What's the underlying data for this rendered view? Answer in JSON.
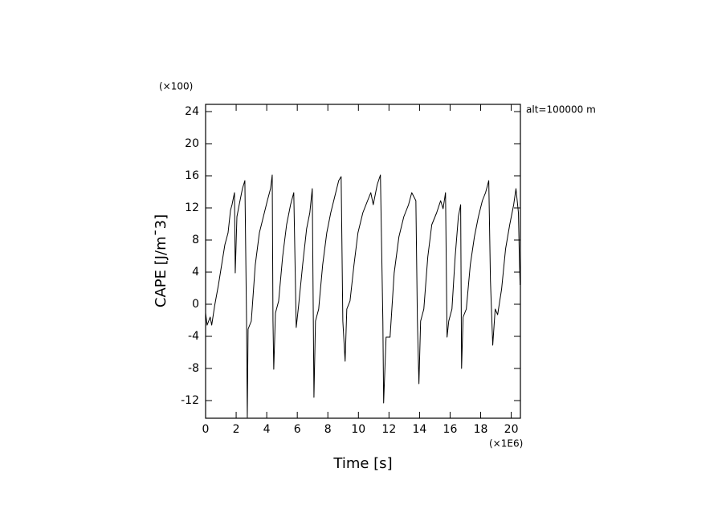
{
  "chart_data": {
    "type": "line",
    "xlabel": "Time [s]",
    "ylabel": "CAPE [J/m¯3]",
    "x_scale_label": "(×1E6)",
    "y_scale_label": "(×100)",
    "annotation": "alt=100000 m",
    "xlim": [
      0,
      20.6
    ],
    "ylim": [
      -14.2,
      24.9
    ],
    "xticks": [
      0,
      2,
      4,
      6,
      8,
      10,
      12,
      14,
      16,
      18,
      20
    ],
    "yticks": [
      -12,
      -8,
      -4,
      0,
      4,
      8,
      12,
      16,
      20,
      24
    ],
    "series": [
      {
        "color": "#000000",
        "x": [
          0,
          0.1,
          0.3,
          0.4,
          0.6,
          0.84,
          1.05,
          1.26,
          1.47,
          1.63,
          1.73,
          1.89,
          1.94,
          2.05,
          2.2,
          2.41,
          2.57,
          2.68,
          2.73,
          2.78,
          2.99,
          3.25,
          3.52,
          3.78,
          4.04,
          4.25,
          4.36,
          4.41,
          4.46,
          4.57,
          4.78,
          5.04,
          5.3,
          5.56,
          5.77,
          5.93,
          6.09,
          6.35,
          6.61,
          6.82,
          6.98,
          7.09,
          7.19,
          7.4,
          7.66,
          7.93,
          8.19,
          8.45,
          8.71,
          8.87,
          8.98,
          9.13,
          9.24,
          9.45,
          9.71,
          9.97,
          10.29,
          10.6,
          10.81,
          10.97,
          11.23,
          11.44,
          11.6,
          11.65,
          11.81,
          12.07,
          12.34,
          12.65,
          12.97,
          13.28,
          13.49,
          13.76,
          13.86,
          13.96,
          14.07,
          14.28,
          14.54,
          14.8,
          15.12,
          15.38,
          15.54,
          15.7,
          15.8,
          15.91,
          16.12,
          16.33,
          16.54,
          16.69,
          16.75,
          16.85,
          17.06,
          17.32,
          17.59,
          17.85,
          18.11,
          18.32,
          18.53,
          18.64,
          18.79,
          18.95,
          19.11,
          19.37,
          19.63,
          19.9,
          20.16,
          20.31,
          20.47,
          20.53,
          20.58
        ],
        "values": [
          -1.1,
          -2.6,
          -1.6,
          -2.6,
          -0.1,
          2.4,
          4.9,
          7.4,
          8.9,
          11.7,
          12.4,
          13.9,
          3.9,
          10.9,
          12.4,
          14.4,
          15.4,
          -2.1,
          -14.1,
          -3.1,
          -2.1,
          4.9,
          8.9,
          10.9,
          12.9,
          14.4,
          16.1,
          -2.1,
          -8.1,
          -1.1,
          0.4,
          5.9,
          9.9,
          12.4,
          13.9,
          -2.9,
          -0.1,
          4.9,
          9.4,
          11.4,
          14.4,
          -11.6,
          -2.1,
          -0.6,
          4.9,
          8.9,
          11.4,
          13.4,
          15.4,
          15.9,
          -2.1,
          -7.1,
          -0.6,
          0.4,
          4.9,
          8.9,
          11.4,
          12.9,
          13.9,
          12.4,
          14.9,
          16.1,
          -2.1,
          -12.3,
          -4.1,
          -4.1,
          3.9,
          8.4,
          10.9,
          12.4,
          13.9,
          12.9,
          -2.1,
          -9.9,
          -2.1,
          -0.6,
          5.9,
          9.9,
          11.4,
          12.9,
          11.9,
          13.9,
          -4.1,
          -2.1,
          -0.6,
          5.9,
          10.9,
          12.4,
          -8.0,
          -1.6,
          -0.6,
          4.9,
          8.4,
          10.9,
          12.9,
          13.9,
          15.4,
          2.9,
          -5.1,
          -0.6,
          -1.3,
          1.9,
          6.9,
          9.9,
          12.4,
          14.4,
          11.4,
          5.9,
          2.4
        ]
      }
    ]
  }
}
